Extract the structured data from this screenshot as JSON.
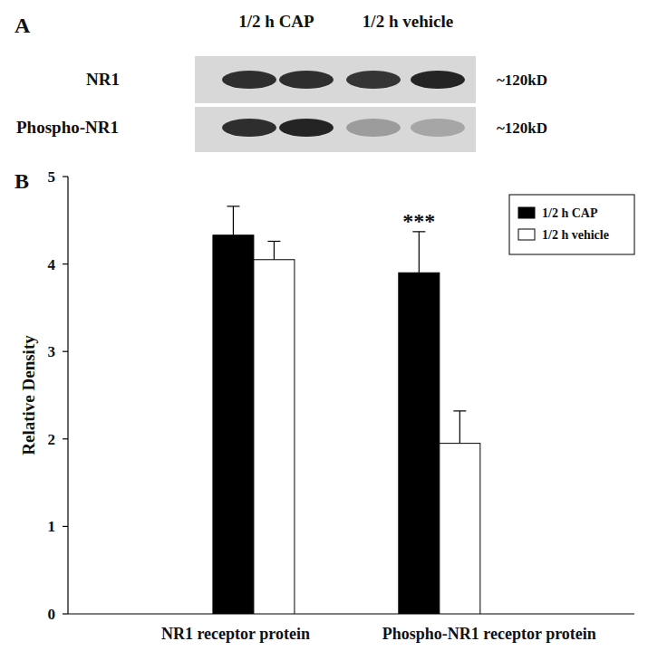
{
  "chart_data": {
    "type": "bar",
    "y_label": "Relative Density",
    "categories": [
      "NR1 receptor protein",
      "Phospho-NR1 receptor protein"
    ],
    "series": [
      {
        "name": "1/2 h CAP",
        "color": "#000000",
        "values": [
          4.33,
          3.9
        ],
        "errors": [
          0.33,
          0.47
        ]
      },
      {
        "name": "1/2 h vehicle",
        "color": "#ffffff",
        "values": [
          4.05,
          1.95
        ],
        "errors": [
          0.21,
          0.37
        ]
      }
    ],
    "ylim": [
      0,
      5
    ],
    "yticks": [
      0,
      1,
      2,
      3,
      4,
      5
    ],
    "grid": false,
    "legend": "top-right",
    "annotations": [
      {
        "text": "***",
        "series": 0,
        "category": 1
      }
    ]
  },
  "blot": {
    "lanes": [
      "1/2 h CAP",
      "1/2 h vehicle"
    ],
    "rows": [
      {
        "label": "NR1",
        "size": "~120kD"
      },
      {
        "label": "Phospho-NR1",
        "size": "~120kD"
      }
    ]
  },
  "panel_labels": {
    "blot": "A",
    "chart": "B"
  }
}
